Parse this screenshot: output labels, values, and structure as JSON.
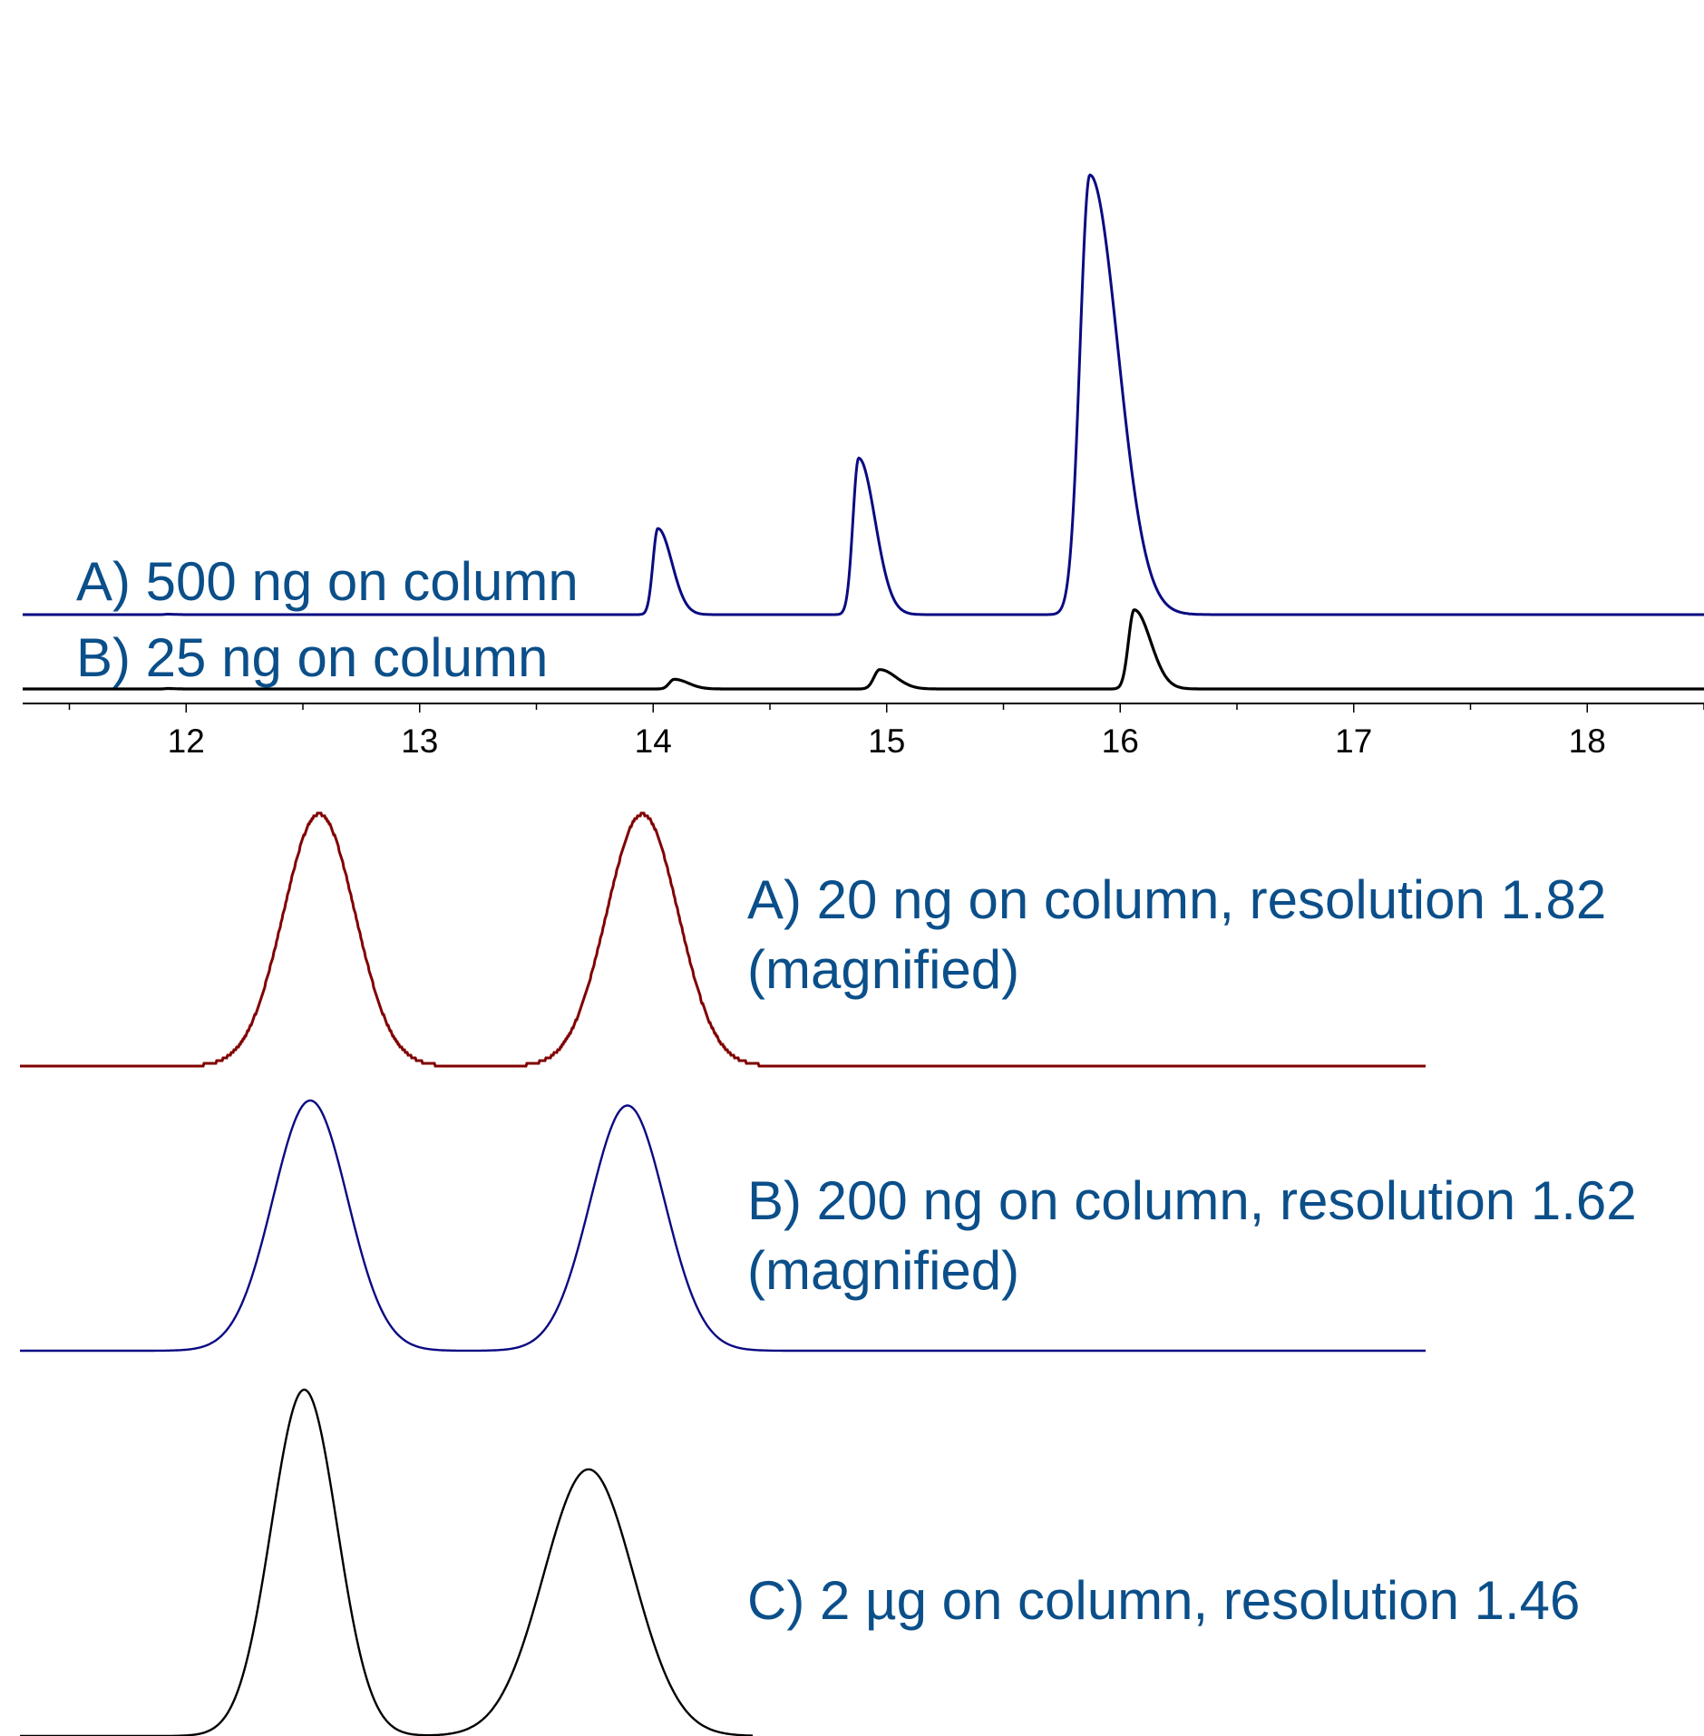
{
  "title": "",
  "colors": {
    "label_text": "#0b4f8a",
    "trace_a_top": "#0a0a82",
    "trace_b_top": "#000000",
    "trace_a_zoom": "#800000",
    "trace_b_zoom": "#0a0a82",
    "trace_c_zoom": "#000000",
    "axis": "#000000"
  },
  "chart_data": [
    {
      "type": "line",
      "title": "",
      "xlabel": "",
      "ylabel": "",
      "xlim": [
        11.3,
        18.5
      ],
      "x_ticks": [
        12,
        13,
        14,
        15,
        16,
        17,
        18
      ],
      "x_tick_labels": [
        "12",
        "13",
        "14",
        "15",
        "16",
        "17",
        "18"
      ],
      "grid": false,
      "series": [
        {
          "name": "A) 500 ng on column",
          "color": "#0a0a82",
          "peaks": [
            {
              "x": 11.92,
              "height": 0.5,
              "width": 0.03
            },
            {
              "x": 14.02,
              "height": 98,
              "width": 0.06
            },
            {
              "x": 14.88,
              "height": 178,
              "width": 0.07
            },
            {
              "x": 15.87,
              "height": 500,
              "width": 0.12
            }
          ]
        },
        {
          "name": "B) 25 ng on column",
          "color": "#000000",
          "peaks": [
            {
              "x": 11.92,
              "height": 0.5,
              "width": 0.03
            },
            {
              "x": 14.09,
              "height": 11,
              "width": 0.06
            },
            {
              "x": 14.97,
              "height": 22,
              "width": 0.07
            },
            {
              "x": 16.06,
              "height": 90,
              "width": 0.07
            }
          ]
        }
      ]
    },
    {
      "type": "line",
      "title": "",
      "xlabel": "",
      "ylabel": "",
      "grid": false,
      "series": [
        {
          "name": "A) 20 ng on column, resolution 1.82",
          "note": "(magnified)",
          "color": "#800000",
          "resolution": 1.82,
          "peaks": [
            {
              "x": 1.0,
              "height": 1.0,
              "width": 0.12
            },
            {
              "x": 2.08,
              "height": 1.0,
              "width": 0.12
            }
          ]
        },
        {
          "name": "B) 200 ng on column, resolution 1.62",
          "note": "(magnified)",
          "color": "#0a0a82",
          "resolution": 1.62,
          "peaks": [
            {
              "x": 0.97,
              "height": 1.0,
              "width": 0.125
            },
            {
              "x": 2.03,
              "height": 0.98,
              "width": 0.125
            }
          ]
        },
        {
          "name": "C) 2 µg on column, resolution 1.46",
          "color": "#000000",
          "resolution": 1.46,
          "peaks": [
            {
              "x": 0.95,
              "height": 1.0,
              "width": 0.11
            },
            {
              "x": 1.9,
              "height": 0.77,
              "width": 0.15
            }
          ]
        }
      ]
    }
  ]
}
